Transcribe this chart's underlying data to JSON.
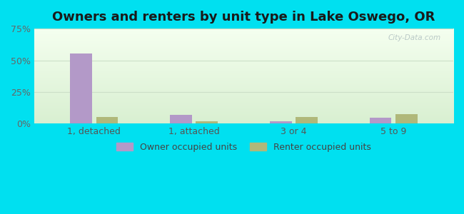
{
  "title": "Owners and renters by unit type in Lake Oswego, OR",
  "categories": [
    "1, detached",
    "1, attached",
    "3 or 4",
    "5 to 9"
  ],
  "owner_values": [
    55.5,
    7.0,
    2.0,
    4.5
  ],
  "renter_values": [
    5.5,
    2.0,
    5.5,
    7.5
  ],
  "owner_color": "#b399c8",
  "renter_color": "#b0b87a",
  "ylim": [
    0,
    75
  ],
  "yticks": [
    0,
    25,
    50,
    75
  ],
  "ytick_labels": [
    "0%",
    "25%",
    "50%",
    "75%"
  ],
  "background_outer": "#00e0f0",
  "background_plot_tl": "#dff0da",
  "background_plot_br": "#f2faf0",
  "grid_color": "#cce0c8",
  "title_fontsize": 13,
  "legend_labels": [
    "Owner occupied units",
    "Renter occupied units"
  ],
  "watermark": "City-Data.com",
  "bar_width": 0.22,
  "bar_gap": 0.04
}
